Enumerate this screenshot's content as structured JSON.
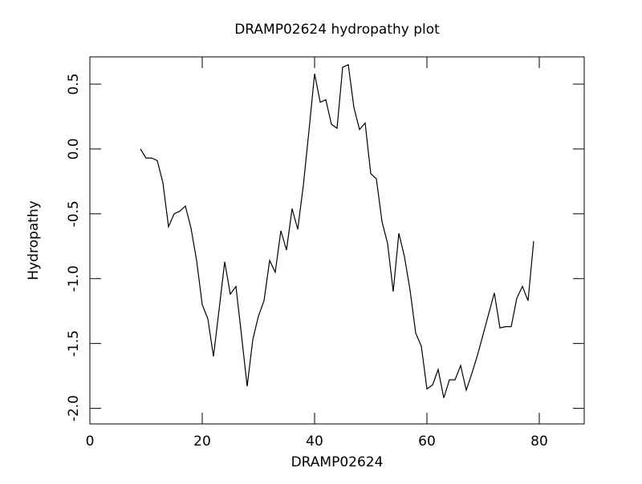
{
  "chart_data": {
    "type": "line",
    "title": "DRAMP02624 hydropathy plot",
    "x_label": "DRAMP02624",
    "y_label": "Hydropathy",
    "color": "#000000",
    "xlim": [
      0,
      88
    ],
    "ylim": [
      -2.12,
      0.71
    ],
    "xticks": [
      0,
      20,
      40,
      60,
      80
    ],
    "yticks": [
      {
        "value": 0.5,
        "label": "0.5"
      },
      {
        "value": 0,
        "label": "0.0"
      },
      {
        "value": -0.5,
        "label": "-0.5"
      },
      {
        "value": -1,
        "label": "-1.0"
      },
      {
        "value": -1.5,
        "label": "-1.5"
      },
      {
        "value": -2,
        "label": "-2.0"
      }
    ],
    "x": [
      9,
      10,
      11,
      12,
      13,
      14,
      15,
      16,
      17,
      18,
      19,
      20,
      21,
      22,
      23,
      24,
      25,
      26,
      27,
      28,
      29,
      30,
      31,
      32,
      33,
      34,
      35,
      36,
      37,
      38,
      39,
      40,
      41,
      42,
      43,
      44,
      45,
      46,
      47,
      48,
      49,
      50,
      51,
      52,
      53,
      54,
      55,
      56,
      57,
      58,
      59,
      60,
      61,
      62,
      63,
      64,
      65,
      66,
      67,
      68,
      69,
      70,
      71,
      72,
      73,
      74,
      75,
      76,
      77,
      78,
      79
    ],
    "values": [
      0.0,
      -0.07,
      -0.07,
      -0.09,
      -0.26,
      -0.6,
      -0.5,
      -0.48,
      -0.44,
      -0.61,
      -0.86,
      -1.2,
      -1.31,
      -1.6,
      -1.24,
      -0.87,
      -1.12,
      -1.06,
      -1.44,
      -1.83,
      -1.47,
      -1.29,
      -1.17,
      -0.86,
      -0.95,
      -0.63,
      -0.78,
      -0.46,
      -0.62,
      -0.28,
      0.14,
      0.58,
      0.36,
      0.38,
      0.19,
      0.16,
      0.63,
      0.65,
      0.32,
      0.15,
      0.2,
      -0.19,
      -0.23,
      -0.56,
      -0.73,
      -1.1,
      -0.65,
      -0.83,
      -1.09,
      -1.42,
      -1.52,
      -1.85,
      -1.82,
      -1.7,
      -1.92,
      -1.78,
      -1.78,
      -1.67,
      -1.86,
      -1.73,
      -1.59,
      -1.43,
      -1.27,
      -1.11,
      -1.38,
      -1.37,
      -1.37,
      -1.15,
      -1.06,
      -1.17,
      -0.71
    ]
  }
}
